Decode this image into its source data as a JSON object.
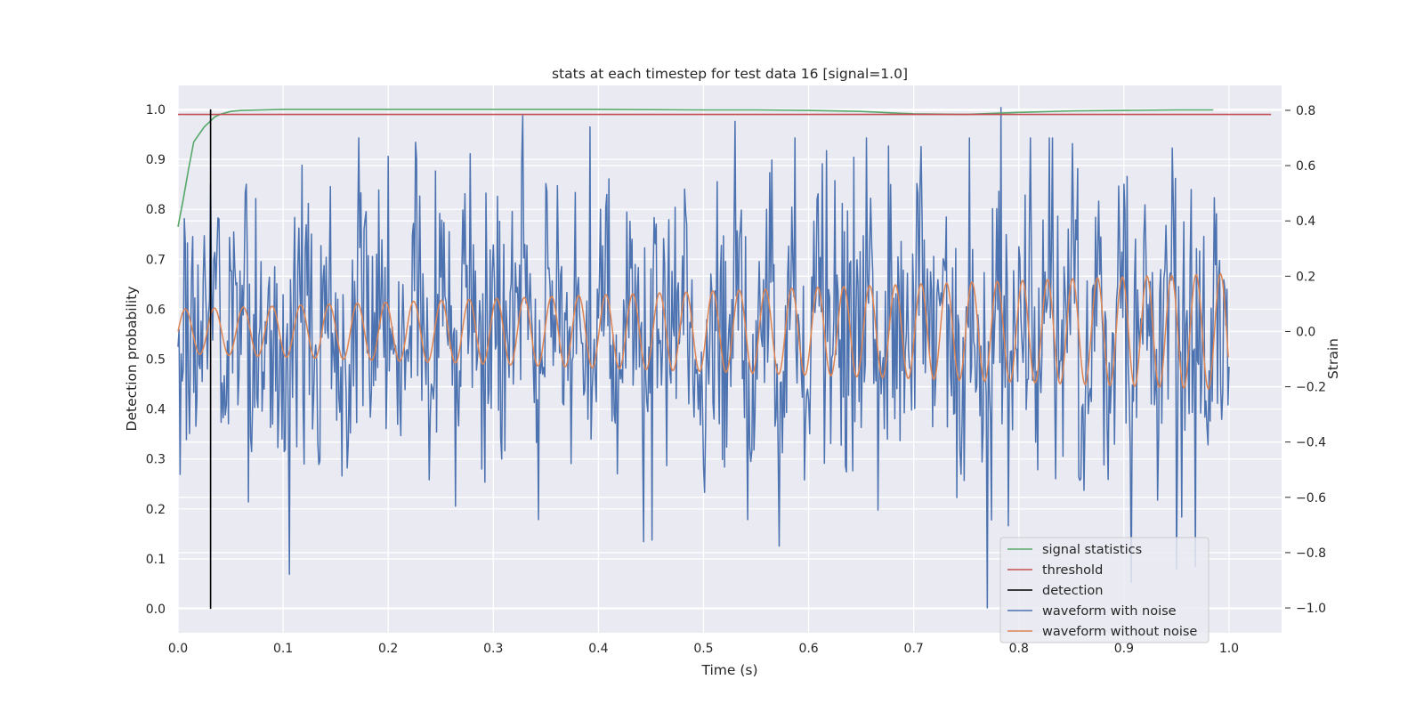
{
  "chart_data": {
    "type": "line",
    "title": "stats at each timestep for test data 16 [signal=1.0]",
    "xlabel": "Time (s)",
    "ylabel": "Detection probability",
    "y2label": "Strain",
    "xlim": [
      0.0,
      1.05
    ],
    "ylim": [
      -0.048,
      1.048
    ],
    "y2lim": [
      -1.09,
      0.89
    ],
    "grid": true,
    "legend_position": "lower right",
    "x_ticks": [
      "0.0",
      "0.1",
      "0.2",
      "0.3",
      "0.4",
      "0.5",
      "0.6",
      "0.7",
      "0.8",
      "0.9",
      "1.0"
    ],
    "y_ticks": [
      "0.0",
      "0.1",
      "0.2",
      "0.3",
      "0.4",
      "0.5",
      "0.6",
      "0.7",
      "0.8",
      "0.9",
      "1.0"
    ],
    "y2_ticks": [
      "−1.0",
      "−0.8",
      "−0.6",
      "−0.4",
      "−0.2",
      "0.0",
      "0.2",
      "0.4",
      "0.6",
      "0.8"
    ],
    "series": [
      {
        "name": "signal statistics",
        "axis": "left",
        "color": "#55a868",
        "x": [
          0.0,
          0.005,
          0.01,
          0.015,
          0.02,
          0.025,
          0.03,
          0.035,
          0.04,
          0.05,
          0.06,
          0.08,
          0.1,
          0.2,
          0.3,
          0.4,
          0.5,
          0.55,
          0.6,
          0.65,
          0.7,
          0.75,
          0.8,
          0.85,
          0.9,
          0.95,
          0.985
        ],
        "values": [
          0.765,
          0.82,
          0.88,
          0.935,
          0.95,
          0.965,
          0.975,
          0.985,
          0.99,
          0.996,
          0.998,
          0.999,
          1.0,
          1.0,
          1.0,
          1.0,
          0.999,
          0.999,
          0.998,
          0.996,
          0.991,
          0.99,
          0.994,
          0.997,
          0.998,
          0.999,
          0.999
        ]
      },
      {
        "name": "threshold",
        "axis": "left",
        "color": "#c44e52",
        "x": [
          0.0,
          1.04
        ],
        "values": [
          0.99,
          0.99
        ]
      },
      {
        "name": "detection",
        "axis": "left",
        "color": "#000000",
        "x": [
          0.031,
          0.031
        ],
        "values": [
          0.0,
          1.0
        ]
      },
      {
        "name": "waveform with noise",
        "axis": "right",
        "color": "#4c72b0",
        "x_start": 0.0,
        "x_end": 1.0,
        "sample_count": 1000,
        "values_peak_markers": [
          {
            "x": 0.328,
            "value": 0.78
          },
          {
            "x": 0.392,
            "value": 0.74
          },
          {
            "x": 0.53,
            "value": 0.76
          },
          {
            "x": 0.783,
            "value": 0.81
          },
          {
            "x": 0.77,
            "value": -1.0
          },
          {
            "x": 0.95,
            "value": -0.86
          },
          {
            "x": 0.968,
            "value": -0.85
          }
        ]
      },
      {
        "name": "waveform without noise",
        "axis": "right",
        "color": "#dd8452",
        "x_start": 0.0,
        "x_end": 1.0,
        "amplitude_start": 0.08,
        "amplitude_end": 0.21,
        "cycles": 36,
        "end_value": -0.09
      }
    ]
  }
}
